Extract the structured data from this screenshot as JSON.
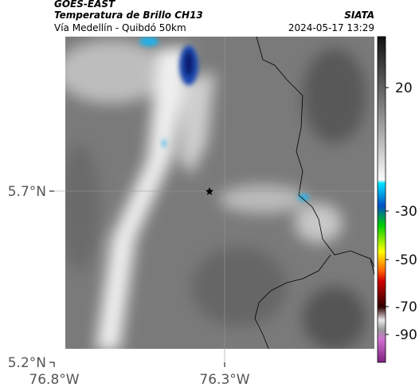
{
  "header": {
    "title": "GOES-EAST",
    "subtitle": "Temperatura de Brillo CH13",
    "route": "Vía Medellín - Quibdó 50km",
    "source": "SIATA",
    "timestamp": "2024-05-17 13:29"
  },
  "axes": {
    "y_labels": [
      "5.7°N",
      "5.2°N"
    ],
    "x_labels": [
      "76.8°W",
      "76.3°W"
    ]
  },
  "colorbar": {
    "tick_labels": [
      "20",
      "-30",
      "-50",
      "-70",
      "-90"
    ]
  }
}
